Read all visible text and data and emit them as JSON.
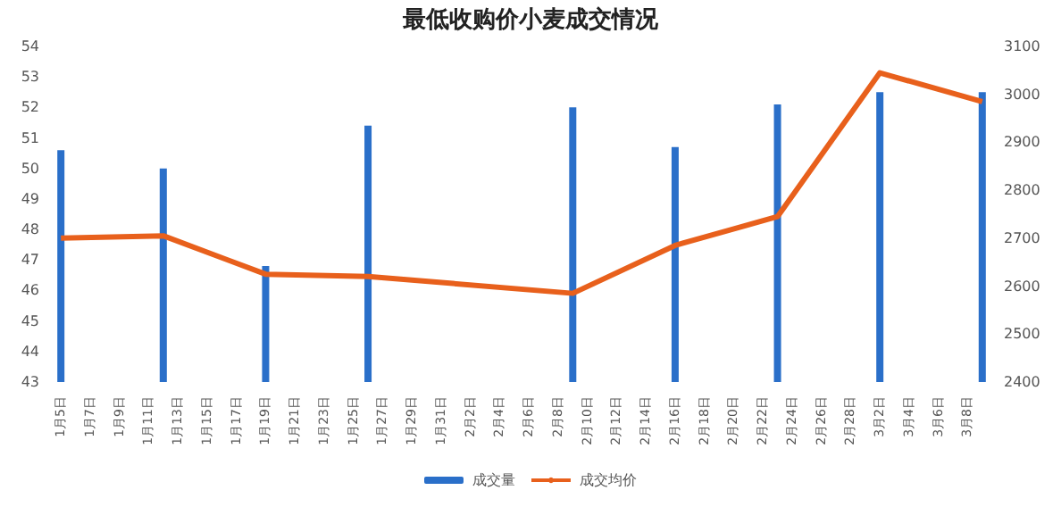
{
  "chart_data": {
    "type": "bar",
    "title": "最低收购价小麦成交情况",
    "categories": [
      "1月5日",
      null,
      "1月7日",
      null,
      "1月9日",
      null,
      "1月11日",
      null,
      "1月13日",
      null,
      "1月15日",
      null,
      "1月17日",
      null,
      "1月19日",
      null,
      "1月21日",
      null,
      "1月23日",
      null,
      "1月25日",
      null,
      "1月27日",
      null,
      "1月29日",
      null,
      "1月31日",
      null,
      "2月2日",
      null,
      "2月4日",
      null,
      "2月6日",
      null,
      "2月8日",
      null,
      "2月10日",
      null,
      "2月12日",
      null,
      "2月14日",
      null,
      "2月16日",
      null,
      "2月18日",
      null,
      "2月20日",
      null,
      "2月22日",
      null,
      "2月24日",
      null,
      "2月26日",
      null,
      "2月28日",
      null,
      "3月2日",
      null,
      "3月4日",
      null,
      "3月6日",
      null,
      "3月8日",
      null
    ],
    "series": [
      {
        "name": "成交量",
        "color": "#2a6fc9",
        "values": [
          50.6,
          null,
          null,
          null,
          null,
          null,
          null,
          50.0,
          null,
          null,
          null,
          null,
          null,
          null,
          46.8,
          null,
          null,
          null,
          null,
          null,
          null,
          51.4,
          null,
          null,
          null,
          null,
          null,
          null,
          null,
          null,
          null,
          null,
          null,
          null,
          null,
          52.0,
          null,
          null,
          null,
          null,
          null,
          null,
          50.7,
          null,
          null,
          null,
          null,
          null,
          null,
          52.1,
          null,
          null,
          null,
          null,
          null,
          null,
          52.5,
          null,
          null,
          null,
          null,
          null,
          null,
          52.5
        ]
      },
      {
        "name": "成交均价",
        "type": "line",
        "axis": "y2",
        "color": "#e8601c",
        "values": [
          2700,
          null,
          null,
          null,
          null,
          null,
          null,
          2705,
          null,
          null,
          null,
          null,
          null,
          null,
          2625,
          null,
          null,
          null,
          null,
          null,
          null,
          2620,
          null,
          null,
          null,
          null,
          null,
          null,
          null,
          null,
          null,
          null,
          null,
          null,
          null,
          2585,
          null,
          null,
          null,
          null,
          null,
          null,
          2685,
          null,
          null,
          null,
          null,
          null,
          null,
          2745,
          null,
          null,
          null,
          null,
          null,
          null,
          3045,
          null,
          null,
          null,
          null,
          null,
          null,
          2985
        ]
      }
    ],
    "ylim": [
      43,
      54
    ],
    "yticks": [
      43,
      44,
      45,
      46,
      47,
      48,
      49,
      50,
      51,
      52,
      53,
      54
    ],
    "y2lim": [
      2400,
      3100
    ],
    "y2ticks": [
      2400,
      2500,
      2600,
      2700,
      2800,
      2900,
      3000,
      3100
    ],
    "legend": "bottom",
    "grid": false
  }
}
